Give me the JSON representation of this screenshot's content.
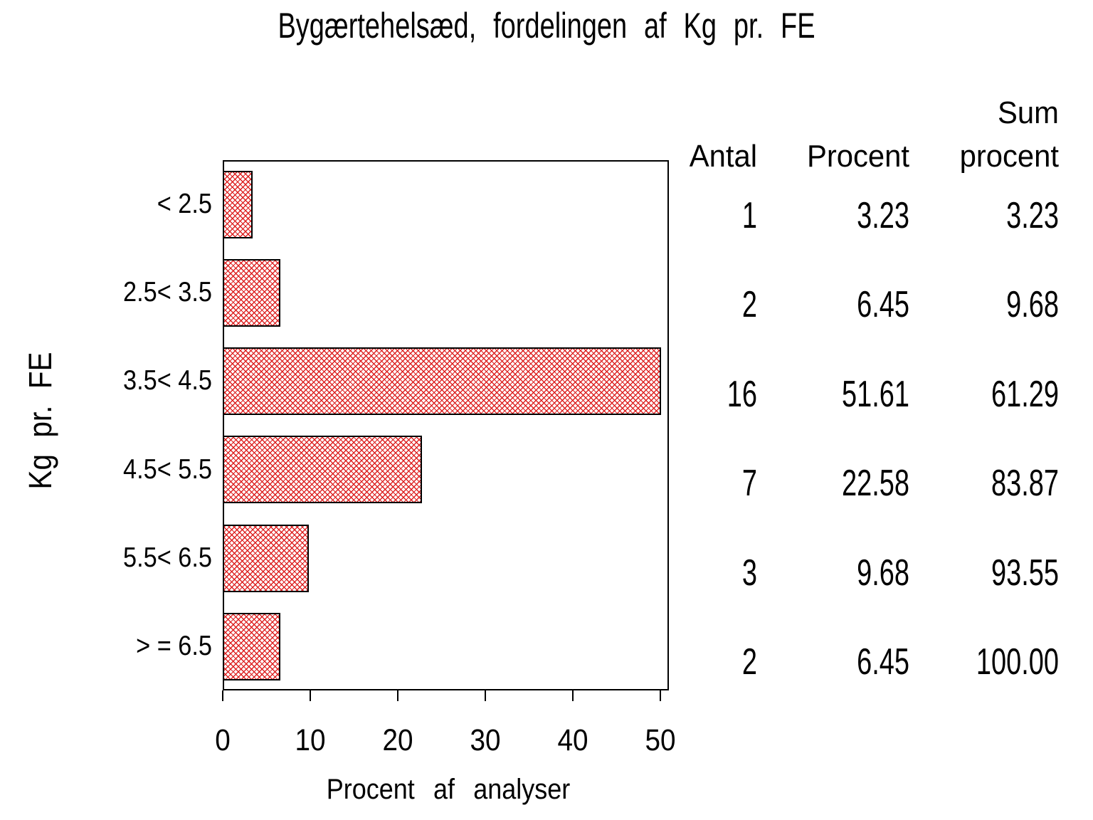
{
  "chart_data": {
    "type": "bar",
    "orientation": "horizontal",
    "title": "Bygærtehelsæd, fordelingen af Kg pr. FE",
    "xlabel": "Procent af analyser",
    "ylabel": "Kg pr. FE",
    "categories": [
      "< 2.5",
      "2.5< 3.5",
      "3.5< 4.5",
      "4.5< 5.5",
      "5.5< 6.5",
      "> = 6.5"
    ],
    "values": [
      3.23,
      6.45,
      51.61,
      22.58,
      9.68,
      6.45
    ],
    "counts": [
      1,
      2,
      16,
      7,
      3,
      2
    ],
    "cum_percent": [
      3.23,
      9.68,
      61.29,
      83.87,
      93.55,
      100.0
    ],
    "x_ticks": [
      "0",
      "10",
      "20",
      "30",
      "40",
      "50"
    ],
    "xlim": [
      0,
      51.61
    ],
    "grid": "off",
    "legend": "none",
    "bar_pattern": "crosshatch",
    "bar_line_color": "#dd2222",
    "bar_border_color": "#000000",
    "background_color": "#ffffff",
    "text_color": "#000000"
  },
  "table": {
    "headers": {
      "antal": "Antal",
      "procent": "Procent",
      "sum_line1": "Sum",
      "sum_line2": "procent"
    },
    "rows": [
      {
        "antal": "1",
        "procent": "3.23",
        "sum": "3.23"
      },
      {
        "antal": "2",
        "procent": "6.45",
        "sum": "9.68"
      },
      {
        "antal": "16",
        "procent": "51.61",
        "sum": "61.29"
      },
      {
        "antal": "7",
        "procent": "22.58",
        "sum": "83.87"
      },
      {
        "antal": "3",
        "procent": "9.68",
        "sum": "93.55"
      },
      {
        "antal": "2",
        "procent": "6.45",
        "sum": "100.00"
      }
    ]
  }
}
